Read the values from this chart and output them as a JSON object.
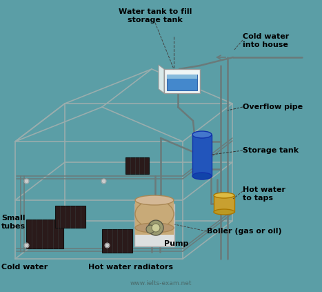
{
  "bg_color": "#5b9ea6",
  "lc": "#9aadad",
  "pc": "#6a7a7a",
  "pipe_lw": 1.8,
  "house_lw": 1.2,
  "rad_color": "#2a1a1a",
  "storage_color": "#2255bb",
  "wt_outer": "#e8f0f0",
  "wt_water": "#4488cc",
  "boiler_base": "#dde0e0",
  "boiler_body": "#c8aa78",
  "pump_color": "#8a8a60",
  "tap_color": "#c8a030",
  "label_color": "#000000",
  "wm_color": "#4a6a6a",
  "labels": {
    "water_tank": "Water tank to fill\nstorage tank",
    "cold_water_house": "Cold water\ninto house",
    "overflow_pipe": "Overflow pipe",
    "storage_tank": "Storage tank",
    "hot_water_taps": "Hot water\nto taps",
    "boiler": "Boiler (gas or oil)",
    "pump": "Pump",
    "hot_water_rad": "Hot water radiators",
    "small_tubes": "Small\ntubes",
    "cold_water": "Cold water",
    "watermark": "www.ielts-exam.net"
  }
}
